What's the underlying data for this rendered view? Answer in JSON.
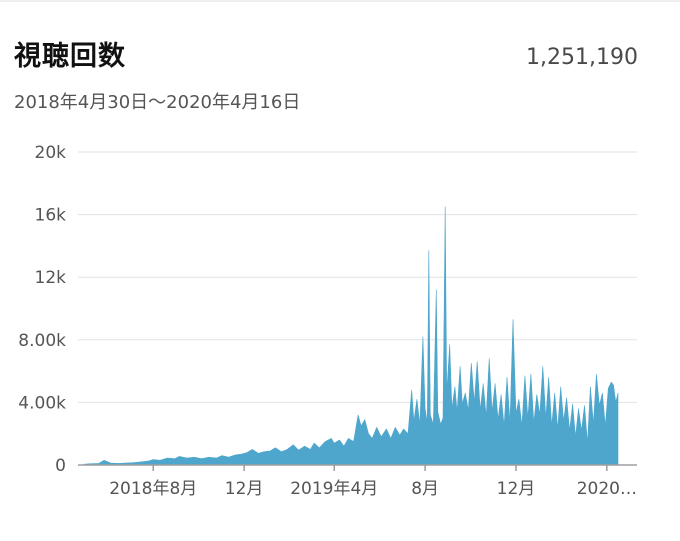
{
  "header": {
    "title": "視聴回数",
    "total": "1,251,190",
    "date_range": "2018年4月30日～2020年4月16日"
  },
  "colors": {
    "area": "#4ea6cc",
    "grid": "#e2e2e2",
    "axis": "#9e9e9e"
  },
  "chart_data": {
    "type": "area",
    "title": "視聴回数",
    "xlabel": "",
    "ylabel": "",
    "ylim": [
      0,
      20000
    ],
    "xlim": [
      "2018-04-30",
      "2020-04-16"
    ],
    "grid": true,
    "legend": "none",
    "y_ticks": [
      {
        "value": 0,
        "label": "0"
      },
      {
        "value": 4000,
        "label": "4.00k"
      },
      {
        "value": 8000,
        "label": "8.00k"
      },
      {
        "value": 12000,
        "label": "12k"
      },
      {
        "value": 16000,
        "label": "16k"
      },
      {
        "value": 20000,
        "label": "20k"
      }
    ],
    "x_ticks": [
      {
        "value": "2018-08-01",
        "label": "2018年8月"
      },
      {
        "value": "2018-12-01",
        "label": "12月"
      },
      {
        "value": "2019-04-01",
        "label": "2019年4月"
      },
      {
        "value": "2019-08-01",
        "label": "8月"
      },
      {
        "value": "2019-12-01",
        "label": "12月"
      },
      {
        "value": "2020-04-01",
        "label": "2020…"
      }
    ],
    "series": [
      {
        "values": [
          [
            "2018-04-30",
            50
          ],
          [
            "2018-05-10",
            80
          ],
          [
            "2018-05-20",
            100
          ],
          [
            "2018-05-27",
            300
          ],
          [
            "2018-06-05",
            120
          ],
          [
            "2018-06-15",
            100
          ],
          [
            "2018-06-25",
            130
          ],
          [
            "2018-07-05",
            150
          ],
          [
            "2018-07-15",
            200
          ],
          [
            "2018-07-25",
            250
          ],
          [
            "2018-08-01",
            350
          ],
          [
            "2018-08-10",
            300
          ],
          [
            "2018-08-20",
            450
          ],
          [
            "2018-08-30",
            400
          ],
          [
            "2018-09-05",
            550
          ],
          [
            "2018-09-15",
            450
          ],
          [
            "2018-09-25",
            500
          ],
          [
            "2018-10-05",
            400
          ],
          [
            "2018-10-15",
            500
          ],
          [
            "2018-10-25",
            450
          ],
          [
            "2018-11-01",
            600
          ],
          [
            "2018-11-10",
            500
          ],
          [
            "2018-11-20",
            650
          ],
          [
            "2018-11-28",
            700
          ],
          [
            "2018-12-05",
            800
          ],
          [
            "2018-12-12",
            1000
          ],
          [
            "2018-12-20",
            750
          ],
          [
            "2018-12-28",
            850
          ],
          [
            "2019-01-05",
            900
          ],
          [
            "2019-01-12",
            1100
          ],
          [
            "2019-01-20",
            850
          ],
          [
            "2019-01-28",
            1000
          ],
          [
            "2019-02-05",
            1300
          ],
          [
            "2019-02-12",
            950
          ],
          [
            "2019-02-20",
            1200
          ],
          [
            "2019-02-28",
            1000
          ],
          [
            "2019-03-05",
            1400
          ],
          [
            "2019-03-12",
            1100
          ],
          [
            "2019-03-20",
            1500
          ],
          [
            "2019-03-28",
            1700
          ],
          [
            "2019-04-01",
            1400
          ],
          [
            "2019-04-08",
            1600
          ],
          [
            "2019-04-14",
            1200
          ],
          [
            "2019-04-20",
            1700
          ],
          [
            "2019-04-27",
            1500
          ],
          [
            "2019-05-03",
            3200
          ],
          [
            "2019-05-07",
            2500
          ],
          [
            "2019-05-12",
            2900
          ],
          [
            "2019-05-17",
            2000
          ],
          [
            "2019-05-22",
            1700
          ],
          [
            "2019-05-28",
            2400
          ],
          [
            "2019-06-03",
            1800
          ],
          [
            "2019-06-10",
            2300
          ],
          [
            "2019-06-16",
            1700
          ],
          [
            "2019-06-22",
            2400
          ],
          [
            "2019-06-28",
            1900
          ],
          [
            "2019-07-03",
            2300
          ],
          [
            "2019-07-09",
            2000
          ],
          [
            "2019-07-14",
            4800
          ],
          [
            "2019-07-17",
            2800
          ],
          [
            "2019-07-21",
            4200
          ],
          [
            "2019-07-25",
            2600
          ],
          [
            "2019-07-29",
            8200
          ],
          [
            "2019-08-01",
            3600
          ],
          [
            "2019-08-04",
            2700
          ],
          [
            "2019-08-06",
            13700
          ],
          [
            "2019-08-08",
            3200
          ],
          [
            "2019-08-12",
            2600
          ],
          [
            "2019-08-16",
            11200
          ],
          [
            "2019-08-18",
            3400
          ],
          [
            "2019-08-22",
            2600
          ],
          [
            "2019-08-25",
            3000
          ],
          [
            "2019-08-28",
            16500
          ],
          [
            "2019-08-30",
            4600
          ],
          [
            "2019-09-03",
            7700
          ],
          [
            "2019-09-06",
            3600
          ],
          [
            "2019-09-10",
            5000
          ],
          [
            "2019-09-13",
            3400
          ],
          [
            "2019-09-17",
            6300
          ],
          [
            "2019-09-20",
            3900
          ],
          [
            "2019-09-24",
            4600
          ],
          [
            "2019-09-28",
            3500
          ],
          [
            "2019-10-02",
            6500
          ],
          [
            "2019-10-06",
            4000
          ],
          [
            "2019-10-10",
            6600
          ],
          [
            "2019-10-14",
            3500
          ],
          [
            "2019-10-18",
            5200
          ],
          [
            "2019-10-22",
            3100
          ],
          [
            "2019-10-26",
            6800
          ],
          [
            "2019-10-30",
            3400
          ],
          [
            "2019-11-03",
            5200
          ],
          [
            "2019-11-07",
            2900
          ],
          [
            "2019-11-11",
            4500
          ],
          [
            "2019-11-15",
            2500
          ],
          [
            "2019-11-19",
            5600
          ],
          [
            "2019-11-23",
            2700
          ],
          [
            "2019-11-27",
            9300
          ],
          [
            "2019-12-01",
            3300
          ],
          [
            "2019-12-05",
            4200
          ],
          [
            "2019-12-09",
            2500
          ],
          [
            "2019-12-13",
            5700
          ],
          [
            "2019-12-17",
            3000
          ],
          [
            "2019-12-21",
            5800
          ],
          [
            "2019-12-25",
            2700
          ],
          [
            "2019-12-29",
            4500
          ],
          [
            "2020-01-02",
            3200
          ],
          [
            "2020-01-06",
            6300
          ],
          [
            "2020-01-10",
            3000
          ],
          [
            "2020-01-14",
            5600
          ],
          [
            "2020-01-18",
            2500
          ],
          [
            "2020-01-22",
            4600
          ],
          [
            "2020-01-26",
            2300
          ],
          [
            "2020-01-30",
            5000
          ],
          [
            "2020-02-03",
            2800
          ],
          [
            "2020-02-07",
            4300
          ],
          [
            "2020-02-11",
            2200
          ],
          [
            "2020-02-15",
            3900
          ],
          [
            "2020-02-19",
            1800
          ],
          [
            "2020-02-23",
            3600
          ],
          [
            "2020-02-27",
            2200
          ],
          [
            "2020-03-02",
            3800
          ],
          [
            "2020-03-06",
            1400
          ],
          [
            "2020-03-10",
            5000
          ],
          [
            "2020-03-14",
            2600
          ],
          [
            "2020-03-18",
            5800
          ],
          [
            "2020-03-22",
            3800
          ],
          [
            "2020-03-26",
            4600
          ],
          [
            "2020-03-30",
            2500
          ],
          [
            "2020-04-03",
            4900
          ],
          [
            "2020-04-07",
            5300
          ],
          [
            "2020-04-10",
            5100
          ],
          [
            "2020-04-13",
            4000
          ],
          [
            "2020-04-16",
            4600
          ]
        ]
      }
    ]
  }
}
